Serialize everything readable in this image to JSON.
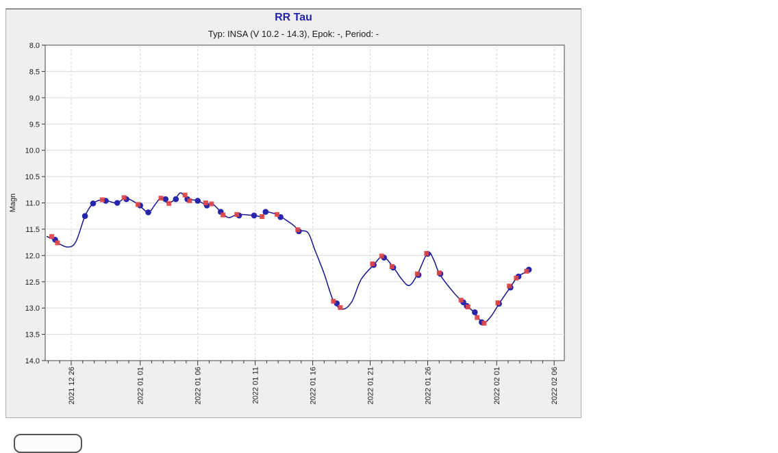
{
  "panel": {
    "background": "#efefef",
    "border_color": "#8f8f8f"
  },
  "chart": {
    "title": "RR Tau",
    "subtitle": "Typ: INSA (V 10.2 - 14.3), Epok: -, Period: -",
    "title_color": "#2222aa",
    "plot_background": "#ffffff",
    "curve_color": "#14148f",
    "blue_marker_color": "#2626ad",
    "red_marker_color": "#e04545",
    "grid_color": "#d8d8d8"
  },
  "chart_data": {
    "type": "line",
    "title": "RR Tau",
    "subtitle": "Typ: INSA (V 10.2 - 14.3), Epok: -, Period: -",
    "xlabel": "",
    "ylabel": "Magn",
    "y_axis": {
      "min": 8.0,
      "max": 14.0,
      "inverted": true,
      "tick_step": 0.5,
      "tick_labels": [
        "8.0",
        "8.5",
        "9.0",
        "9.5",
        "10.0",
        "10.5",
        "11.0",
        "11.5",
        "12.0",
        "12.5",
        "13.0",
        "13.5",
        "14.0"
      ]
    },
    "x_axis": {
      "unit": "days since 2021-12-26",
      "min": -2.3,
      "max": 42.9,
      "minor_tick_every_days": 1,
      "major_ticks": [
        {
          "day": 0,
          "label": "2021 12 26"
        },
        {
          "day": 6,
          "label": "2022 01 01"
        },
        {
          "day": 11,
          "label": "2022 01 06"
        },
        {
          "day": 16,
          "label": "2022 01 11"
        },
        {
          "day": 21,
          "label": "2022 01 16"
        },
        {
          "day": 26,
          "label": "2022 01 21"
        },
        {
          "day": 31,
          "label": "2022 01 26"
        },
        {
          "day": 37,
          "label": "2022 02 01"
        },
        {
          "day": 42,
          "label": "2022 02 06"
        }
      ]
    },
    "grid": {
      "horizontal": "solid",
      "vertical": "dashed"
    },
    "legend": "none",
    "series": [
      {
        "name": "fitted-curve",
        "style": "smooth-line",
        "color": "#14148f",
        "points": [
          [
            -2.1,
            11.64
          ],
          [
            -1.5,
            11.7
          ],
          [
            -1.1,
            11.77
          ],
          [
            -0.3,
            11.84
          ],
          [
            0.4,
            11.74
          ],
          [
            1.2,
            11.25
          ],
          [
            1.9,
            11.01
          ],
          [
            2.7,
            10.94
          ],
          [
            3.3,
            10.97
          ],
          [
            4.0,
            11.0
          ],
          [
            4.7,
            10.91
          ],
          [
            5.4,
            10.97
          ],
          [
            5.9,
            11.04
          ],
          [
            6.7,
            11.18
          ],
          [
            7.3,
            11.03
          ],
          [
            7.8,
            10.91
          ],
          [
            8.4,
            11.0
          ],
          [
            9.0,
            10.94
          ],
          [
            9.5,
            10.81
          ],
          [
            10.1,
            10.92
          ],
          [
            11.0,
            10.96
          ],
          [
            11.8,
            11.04
          ],
          [
            12.3,
            11.02
          ],
          [
            13.1,
            11.19
          ],
          [
            13.7,
            11.28
          ],
          [
            14.5,
            11.22
          ],
          [
            15.9,
            11.24
          ],
          [
            16.6,
            11.26
          ],
          [
            16.9,
            11.17
          ],
          [
            17.9,
            11.22
          ],
          [
            18.3,
            11.27
          ],
          [
            19.3,
            11.42
          ],
          [
            19.8,
            11.52
          ],
          [
            20.6,
            11.57
          ],
          [
            21.2,
            11.9
          ],
          [
            22.0,
            12.35
          ],
          [
            22.8,
            12.86
          ],
          [
            23.6,
            13.02
          ],
          [
            24.4,
            12.88
          ],
          [
            25.2,
            12.46
          ],
          [
            26.3,
            12.18
          ],
          [
            27.1,
            12.02
          ],
          [
            28.0,
            12.22
          ],
          [
            28.7,
            12.44
          ],
          [
            29.4,
            12.57
          ],
          [
            30.1,
            12.36
          ],
          [
            31.0,
            11.95
          ],
          [
            31.5,
            12.07
          ],
          [
            32.0,
            12.34
          ],
          [
            32.9,
            12.61
          ],
          [
            33.9,
            12.86
          ],
          [
            34.5,
            12.98
          ],
          [
            35.1,
            13.09
          ],
          [
            35.8,
            13.28
          ],
          [
            36.5,
            13.16
          ],
          [
            37.2,
            12.92
          ],
          [
            38.2,
            12.6
          ],
          [
            38.8,
            12.41
          ],
          [
            39.4,
            12.33
          ],
          [
            39.8,
            12.27
          ]
        ]
      },
      {
        "name": "observations-blue",
        "marker": "circle",
        "color": "#2626ad",
        "points": [
          [
            -1.4,
            11.7
          ],
          [
            1.2,
            11.25
          ],
          [
            1.9,
            11.01
          ],
          [
            3.0,
            10.96
          ],
          [
            4.0,
            11.0
          ],
          [
            4.8,
            10.93
          ],
          [
            6.0,
            11.05
          ],
          [
            6.7,
            11.18
          ],
          [
            8.2,
            10.93
          ],
          [
            9.1,
            10.93
          ],
          [
            10.1,
            10.93
          ],
          [
            11.0,
            10.96
          ],
          [
            11.8,
            11.05
          ],
          [
            13.0,
            11.17
          ],
          [
            14.6,
            11.24
          ],
          [
            15.9,
            11.24
          ],
          [
            16.9,
            11.17
          ],
          [
            18.2,
            11.27
          ],
          [
            19.8,
            11.54
          ],
          [
            23.1,
            12.91
          ],
          [
            26.3,
            12.18
          ],
          [
            27.2,
            12.04
          ],
          [
            28.0,
            12.23
          ],
          [
            30.2,
            12.37
          ],
          [
            31.0,
            11.97
          ],
          [
            32.1,
            12.35
          ],
          [
            34.1,
            12.89
          ],
          [
            34.4,
            12.96
          ],
          [
            35.1,
            13.08
          ],
          [
            35.7,
            13.27
          ],
          [
            37.2,
            12.92
          ],
          [
            38.2,
            12.61
          ],
          [
            38.9,
            12.4
          ],
          [
            39.8,
            12.27
          ]
        ]
      },
      {
        "name": "observations-red",
        "marker": "square",
        "color": "#e04545",
        "points": [
          [
            -1.7,
            11.64
          ],
          [
            -1.2,
            11.76
          ],
          [
            2.7,
            10.94
          ],
          [
            4.6,
            10.9
          ],
          [
            5.8,
            11.03
          ],
          [
            7.8,
            10.91
          ],
          [
            8.5,
            11.01
          ],
          [
            9.9,
            10.85
          ],
          [
            10.3,
            10.96
          ],
          [
            11.7,
            11.0
          ],
          [
            12.2,
            11.02
          ],
          [
            13.2,
            11.23
          ],
          [
            14.4,
            11.22
          ],
          [
            16.6,
            11.26
          ],
          [
            17.9,
            11.22
          ],
          [
            19.7,
            11.51
          ],
          [
            22.8,
            12.87
          ],
          [
            23.4,
            12.99
          ],
          [
            26.2,
            12.16
          ],
          [
            27.0,
            12.01
          ],
          [
            27.9,
            12.21
          ],
          [
            30.1,
            12.35
          ],
          [
            30.9,
            11.96
          ],
          [
            32.0,
            12.33
          ],
          [
            33.9,
            12.85
          ],
          [
            34.5,
            12.98
          ],
          [
            35.3,
            13.18
          ],
          [
            35.9,
            13.29
          ],
          [
            37.1,
            12.9
          ],
          [
            38.1,
            12.58
          ],
          [
            38.7,
            12.43
          ],
          [
            39.6,
            12.3
          ]
        ]
      }
    ]
  },
  "footer": {
    "button_label": ""
  }
}
